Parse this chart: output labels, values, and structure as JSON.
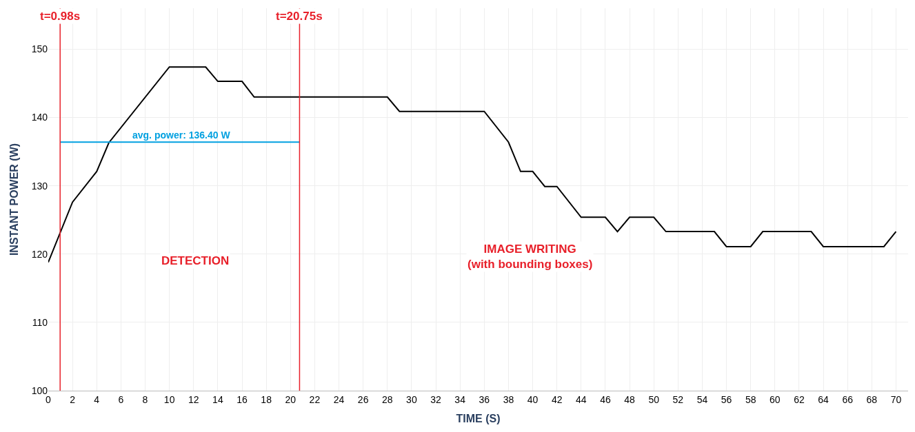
{
  "chart_data": {
    "type": "line",
    "xlabel": "TIME (S)",
    "ylabel": "INSTANT POWER (W)",
    "xlim": [
      0,
      71
    ],
    "xticks": [
      0,
      2,
      4,
      6,
      8,
      10,
      12,
      14,
      16,
      18,
      20,
      22,
      24,
      26,
      28,
      30,
      32,
      34,
      36,
      38,
      40,
      42,
      44,
      46,
      48,
      50,
      52,
      54,
      56,
      58,
      60,
      62,
      64,
      66,
      68,
      70
    ],
    "ylim": [
      100,
      156
    ],
    "yticks": [
      100,
      110,
      120,
      130,
      140,
      150
    ],
    "grid": true,
    "marker": "none",
    "line_style": "solid",
    "series": [
      {
        "color": "#000000",
        "x": [
          0,
          2,
          4,
          5,
          10,
          13,
          14,
          16,
          17,
          28,
          29,
          36,
          38,
          39,
          40,
          41,
          42,
          44,
          46,
          47,
          48,
          50,
          51,
          55,
          56,
          58,
          59,
          63,
          64,
          69,
          70
        ],
        "values": [
          118.8,
          127.6,
          132.1,
          136.3,
          147.4,
          147.4,
          145.3,
          145.3,
          143.0,
          143.0,
          140.9,
          140.9,
          136.4,
          132.1,
          132.1,
          129.9,
          129.9,
          125.4,
          125.4,
          123.3,
          125.4,
          125.4,
          123.3,
          123.3,
          121.1,
          121.1,
          123.3,
          123.3,
          121.1,
          121.1,
          123.3
        ]
      },
      {
        "color": "#00a0e0",
        "x": [
          0.98,
          20.75
        ],
        "values": [
          136.4,
          136.4
        ]
      }
    ],
    "ref_lines": [
      {
        "axis": "x",
        "value": 0.98,
        "label": "t=0.98s",
        "color": "#e8202a"
      },
      {
        "axis": "x",
        "value": 20.75,
        "label": "t=20.75s",
        "color": "#e8202a"
      }
    ],
    "annotations": [
      {
        "text": "avg. power: 136.40 W",
        "x": 11,
        "y": 136.4
      },
      "DETECTION",
      "IMAGE WRITING\n(with bounding boxes)"
    ]
  }
}
